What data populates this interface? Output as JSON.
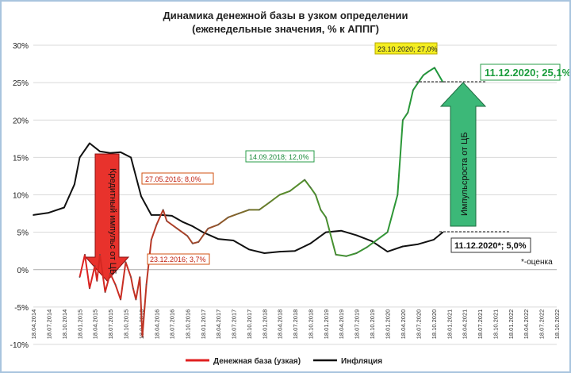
{
  "chart_data": {
    "type": "line",
    "title": "Динамика денежной базы в узком определении",
    "subtitle": "(еженедельные значения, % к АППГ)",
    "ylim": [
      -10,
      30
    ],
    "yticks": [
      "-10%",
      "-5%",
      "0%",
      "5%",
      "10%",
      "15%",
      "20%",
      "25%",
      "30%"
    ],
    "grid": true,
    "legend_position": "bottom",
    "x_tick_labels": [
      "18.04.2014",
      "18.07.2014",
      "18.10.2014",
      "18.01.2015",
      "18.04.2015",
      "18.07.2015",
      "18.10.2015",
      "18.01.2016",
      "18.04.2016",
      "18.07.2016",
      "18.10.2016",
      "18.01.2017",
      "18.04.2017",
      "18.07.2017",
      "18.10.2017",
      "18.01.2018",
      "18.04.2018",
      "18.07.2018",
      "18.10.2018",
      "18.01.2019",
      "18.04.2019",
      "18.07.2019",
      "18.10.2019",
      "18.01.2020",
      "18.04.2020",
      "18.07.2020",
      "18.10.2020",
      "18.01.2021",
      "18.04.2021",
      "18.07.2021",
      "18.10.2021",
      "18.01.2022",
      "18.04.2022",
      "18.07.2022",
      "18.10.2022"
    ],
    "series": [
      {
        "name": "Денежная база (узкая)",
        "color": "#e02020",
        "x": [
          "18.01.2015",
          "18.02.2015",
          "18.03.2015",
          "18.04.2015",
          "01.05.2015",
          "18.05.2015",
          "18.06.2015",
          "18.07.2015",
          "18.08.2015",
          "18.09.2015",
          "18.10.2015",
          "18.11.2015",
          "01.12.2015",
          "18.12.2015",
          "10.01.2016",
          "25.01.2016",
          "18.02.2016",
          "18.03.2016",
          "18.04.2016",
          "27.05.2016",
          "18.06.2016",
          "18.08.2016",
          "18.10.2016",
          "18.11.2016",
          "23.12.2016",
          "18.02.2017",
          "18.04.2017",
          "18.06.2017",
          "18.08.2017",
          "18.10.2017",
          "18.12.2017",
          "18.02.2018",
          "18.04.2018",
          "18.06.2018",
          "14.09.2018",
          "18.10.2018",
          "18.11.2018",
          "18.12.2018",
          "18.01.2019",
          "18.03.2019",
          "18.05.2019",
          "18.07.2019",
          "18.09.2019",
          "18.11.2019",
          "18.01.2020",
          "18.03.2020",
          "18.04.2020",
          "18.05.2020",
          "18.06.2020",
          "18.07.2020",
          "18.08.2020",
          "18.09.2020",
          "23.10.2020",
          "18.11.2020",
          "11.12.2020"
        ],
        "y": [
          -1,
          2,
          -2.5,
          0.5,
          -1.5,
          2,
          -3,
          -0.5,
          -2,
          -4,
          1,
          -1,
          -2.5,
          -4,
          -1,
          -9,
          -2,
          4,
          6,
          8,
          6.5,
          5.5,
          4.5,
          3.5,
          3.7,
          5.5,
          6,
          7,
          7.5,
          8,
          8,
          9,
          10,
          10.5,
          12,
          11,
          10,
          8,
          7,
          2,
          1.8,
          2.2,
          3,
          4,
          5,
          10,
          20,
          21,
          24,
          25,
          26,
          26.5,
          27,
          26,
          25.1
        ]
      },
      {
        "name": "Инфляция",
        "color": "#111111",
        "x": [
          "18.04.2014",
          "18.07.2014",
          "18.10.2014",
          "18.12.2014",
          "18.01.2015",
          "18.03.2015",
          "18.05.2015",
          "18.07.2015",
          "18.09.2015",
          "18.11.2015",
          "18.01.2016",
          "18.03.2016",
          "18.05.2016",
          "18.07.2016",
          "18.09.2016",
          "18.11.2016",
          "18.01.2017",
          "18.04.2017",
          "18.07.2017",
          "18.10.2017",
          "18.01.2018",
          "18.04.2018",
          "18.07.2018",
          "18.10.2018",
          "18.01.2019",
          "18.04.2019",
          "18.07.2019",
          "18.10.2019",
          "18.01.2020",
          "18.04.2020",
          "18.07.2020",
          "18.10.2020",
          "11.12.2020"
        ],
        "y": [
          7.3,
          7.6,
          8.3,
          11.4,
          15,
          16.9,
          15.8,
          15.6,
          15.7,
          15,
          9.8,
          7.3,
          7.3,
          7.2,
          6.4,
          5.8,
          5,
          4.1,
          3.9,
          2.7,
          2.2,
          2.4,
          2.5,
          3.5,
          5,
          5.2,
          4.6,
          3.8,
          2.4,
          3.1,
          3.4,
          4,
          5
        ]
      }
    ],
    "annotations": {
      "peak_2016": "27.05.2016; 8,0%",
      "trough_2016": "23.12.2016; 3,7%",
      "peak_2018": "14.09.2018; 12,0%",
      "peak_2020": "23.10.2020; 27,0%",
      "last_base": "11.12.2020; 25,1%",
      "last_inflation": "11.12.2020*; 5,0%",
      "note": "*-оценка",
      "arrow_down": "Кредитный импульс от ЦБ",
      "arrow_up": "Импульсроста от ЦБ"
    }
  }
}
